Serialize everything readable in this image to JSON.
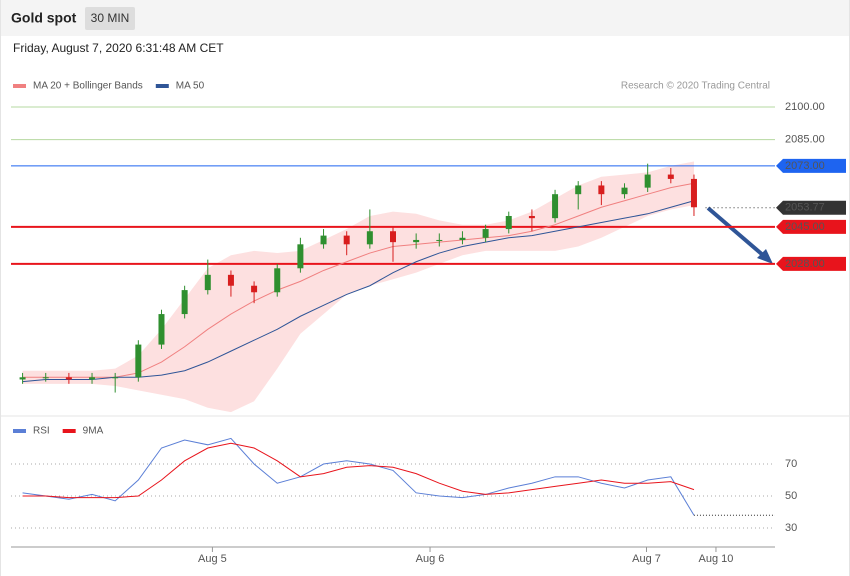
{
  "header": {
    "title": "Gold spot",
    "badge": "30 MIN",
    "timestamp": "Friday, August 7, 2020 6:31:48 AM CET"
  },
  "chart_data": [
    {
      "type": "candlestick",
      "credit": "Research © 2020 Trading Central",
      "ylim": [
        1958.7,
        2105.5
      ],
      "xlim": [
        0,
        33
      ],
      "yticks": [
        {
          "value": 2100,
          "label": "2100.00"
        },
        {
          "value": 2085,
          "label": "2085.00"
        }
      ],
      "tick_color": "#4a9a1e",
      "levels": [
        {
          "value": 2073,
          "label": "2073.00",
          "color": "#1e64f0",
          "style": "thin"
        },
        {
          "value": 2053.77,
          "label": "2053.77",
          "color": "#333333",
          "style": "dotted"
        },
        {
          "value": 2045,
          "label": "2045.00",
          "color": "#e8141c",
          "style": "thick"
        },
        {
          "value": 2028,
          "label": "2028.00",
          "color": "#e8141c",
          "style": "thick"
        }
      ],
      "up_color": "#2f8f2f",
      "down_color": "#d81e1e",
      "open": [
        1975,
        1976,
        1976,
        1975,
        1976,
        1976,
        1991,
        2005,
        2016,
        2023,
        2018,
        2015,
        2026,
        2037,
        2041,
        2037,
        2043,
        2038,
        2039,
        2039,
        2040,
        2044,
        2050,
        2049,
        2060,
        2064,
        2060,
        2063,
        2069,
        2067
      ],
      "high": [
        1978,
        1978,
        1978,
        1978,
        1978,
        1993,
        2007,
        2018,
        2030,
        2025,
        2020,
        2028,
        2040,
        2044,
        2043,
        2053,
        2045,
        2042,
        2042,
        2043,
        2046,
        2052,
        2053,
        2062,
        2066,
        2066,
        2065,
        2074,
        2072,
        2069
      ],
      "low": [
        1973,
        1974,
        1973,
        1973,
        1969,
        1974,
        1989,
        2003,
        2014,
        2013,
        2010,
        2013,
        2024,
        2035,
        2032,
        2035,
        2029,
        2035,
        2036,
        2037,
        2038,
        2042,
        2043,
        2047,
        2053,
        2055,
        2058,
        2061,
        2065,
        2050
      ],
      "close": [
        1976,
        1976,
        1975,
        1976,
        1976,
        1991,
        2005,
        2016,
        2023,
        2018,
        2015,
        2026,
        2037,
        2041,
        2037,
        2043,
        2038,
        2039,
        2039,
        2040,
        2044,
        2050,
        2049,
        2060,
        2064,
        2060,
        2063,
        2069,
        2067,
        2054
      ],
      "series": [
        {
          "name": "MA 20 + Bollinger Bands",
          "color": "#f08080",
          "band_color": "#fde0e0",
          "values": [
            1976,
            1976,
            1976,
            1976,
            1976,
            1978,
            1983,
            1990,
            1998,
            2005,
            2011,
            2016,
            2020,
            2025,
            2029,
            2033,
            2036,
            2037,
            2038,
            2039,
            2040,
            2041,
            2043,
            2046,
            2050,
            2054,
            2057,
            2060,
            2063,
            2065
          ],
          "upper": [
            1979,
            1979,
            1979,
            1979,
            1980,
            1986,
            1998,
            2012,
            2026,
            2032,
            2034,
            2033,
            2034,
            2039,
            2044,
            2050,
            2052,
            2051,
            2048,
            2046,
            2046,
            2048,
            2052,
            2058,
            2064,
            2068,
            2069,
            2070,
            2073,
            2075
          ],
          "lower": [
            1973,
            1973,
            1973,
            1973,
            1972,
            1970,
            1968,
            1966,
            1962,
            1960,
            1965,
            1980,
            1996,
            2005,
            2014,
            2018,
            2021,
            2024,
            2028,
            2032,
            2034,
            2034,
            2034,
            2034,
            2036,
            2040,
            2045,
            2050,
            2053,
            2055
          ]
        },
        {
          "name": "MA 50",
          "color": "#2f5597",
          "values": [
            1974,
            1975,
            1975,
            1975,
            1976,
            1976,
            1977,
            1979,
            1983,
            1988,
            1993,
            1998,
            2004,
            2009,
            2014,
            2018,
            2024,
            2029,
            2033,
            2036,
            2038,
            2040,
            2041,
            2043,
            2045,
            2047,
            2049,
            2051,
            2054,
            2057
          ]
        }
      ]
    },
    {
      "type": "line",
      "ylim": [
        19.4,
        85
      ],
      "xlim": [
        0,
        33
      ],
      "yticks": [
        70,
        50,
        30
      ],
      "xticks": [
        {
          "value": 8.7,
          "label": "Aug 5"
        },
        {
          "value": 18.1,
          "label": "Aug 6"
        },
        {
          "value": 27.45,
          "label": "Aug 7"
        },
        {
          "value": 30.45,
          "label": "Aug 10"
        }
      ],
      "series": [
        {
          "name": "RSI",
          "color": "#5b7fd6",
          "values": [
            52,
            50,
            48,
            51,
            47,
            60,
            80,
            85,
            82,
            86,
            70,
            58,
            62,
            70,
            72,
            70,
            66,
            52,
            50,
            49,
            51,
            55,
            58,
            62,
            62,
            58,
            55,
            60,
            62,
            38
          ]
        },
        {
          "name": "9MA",
          "color": "#e8141c",
          "values": [
            50,
            50,
            49,
            49,
            49,
            50,
            60,
            72,
            80,
            83,
            80,
            72,
            62,
            64,
            68,
            69,
            68,
            64,
            58,
            53,
            51,
            52,
            54,
            56,
            58,
            60,
            58,
            58,
            59,
            54
          ]
        }
      ]
    }
  ]
}
